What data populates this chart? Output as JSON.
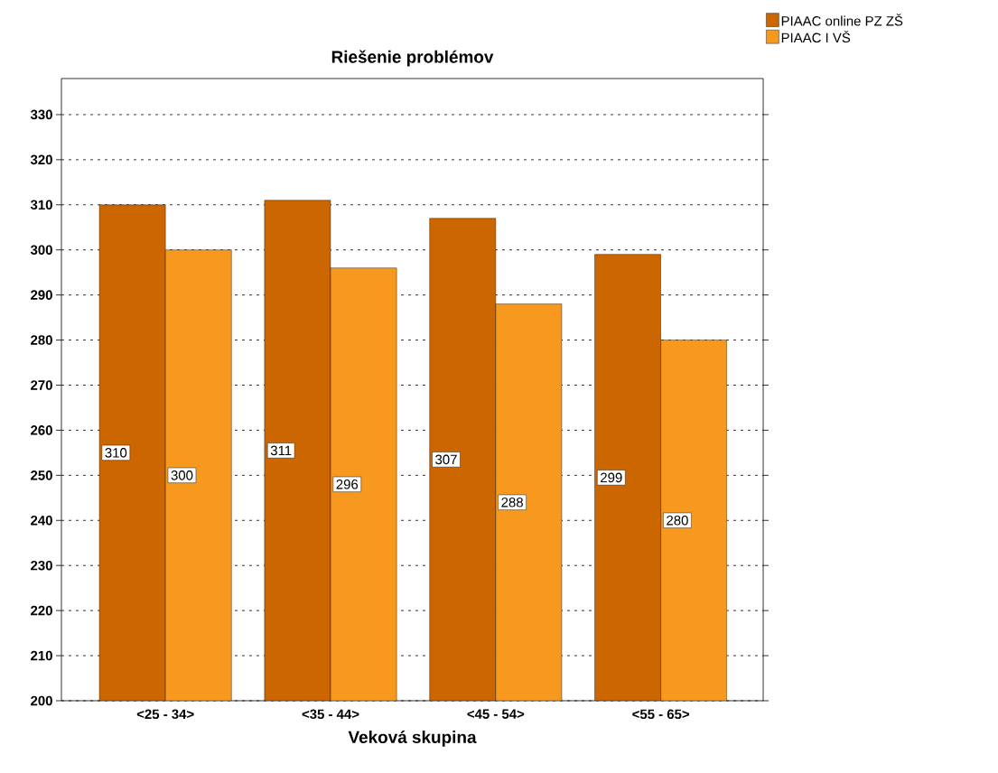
{
  "chart_data": {
    "type": "bar",
    "title": "Riešenie problémov",
    "xlabel": "Veková skupina",
    "categories": [
      "<25 - 34>",
      "<35 - 44>",
      "<45 - 54>",
      "<55 - 65>"
    ],
    "series": [
      {
        "name": "PIAAC online PZ ZŠ",
        "color": "#cc6600",
        "values": [
          310,
          311,
          307,
          299
        ]
      },
      {
        "name": "PIAAC I VŠ",
        "color": "#f7991f",
        "values": [
          300,
          296,
          288,
          280
        ]
      }
    ],
    "ylim": [
      200,
      338
    ],
    "yticks": [
      200,
      210,
      220,
      230,
      240,
      250,
      260,
      270,
      280,
      290,
      300,
      310,
      320,
      330
    ],
    "grid": "y",
    "legend": "top right",
    "data_labels": true
  }
}
